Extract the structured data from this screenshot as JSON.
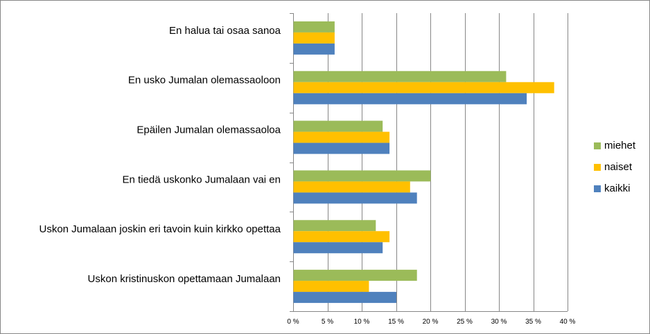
{
  "chart_data": {
    "type": "bar",
    "orientation": "horizontal",
    "categories": [
      "En halua tai osaa sanoa",
      "En usko Jumalan olemassaoloon",
      "Epäilen Jumalan olemassaoloa",
      "En tiedä uskonko Jumalaan vai en",
      "Uskon Jumalaan joskin eri tavoin kuin kirkko opettaa",
      "Uskon kristinuskon opettamaan Jumalaan"
    ],
    "series": [
      {
        "name": "miehet",
        "color": "#9bbb59",
        "values": [
          6,
          31,
          13,
          20,
          12,
          18
        ]
      },
      {
        "name": "naiset",
        "color": "#ffc000",
        "values": [
          6,
          38,
          14,
          17,
          14,
          11
        ]
      },
      {
        "name": "kaikki",
        "color": "#4f81bd",
        "values": [
          6,
          34,
          14,
          18,
          13,
          15
        ]
      }
    ],
    "xlim": [
      0,
      40
    ],
    "xticks": [
      {
        "value": 0,
        "label": "0 %"
      },
      {
        "value": 5,
        "label": "5 %"
      },
      {
        "value": 10,
        "label": "10 %"
      },
      {
        "value": 15,
        "label": "15 %"
      },
      {
        "value": 20,
        "label": "20 %"
      },
      {
        "value": 25,
        "label": "25 %"
      },
      {
        "value": 30,
        "label": "30 %"
      },
      {
        "value": 35,
        "label": "35 %"
      },
      {
        "value": 40,
        "label": "40 %"
      }
    ],
    "grid": true,
    "legend": "right",
    "gridline_color": "#868686"
  }
}
